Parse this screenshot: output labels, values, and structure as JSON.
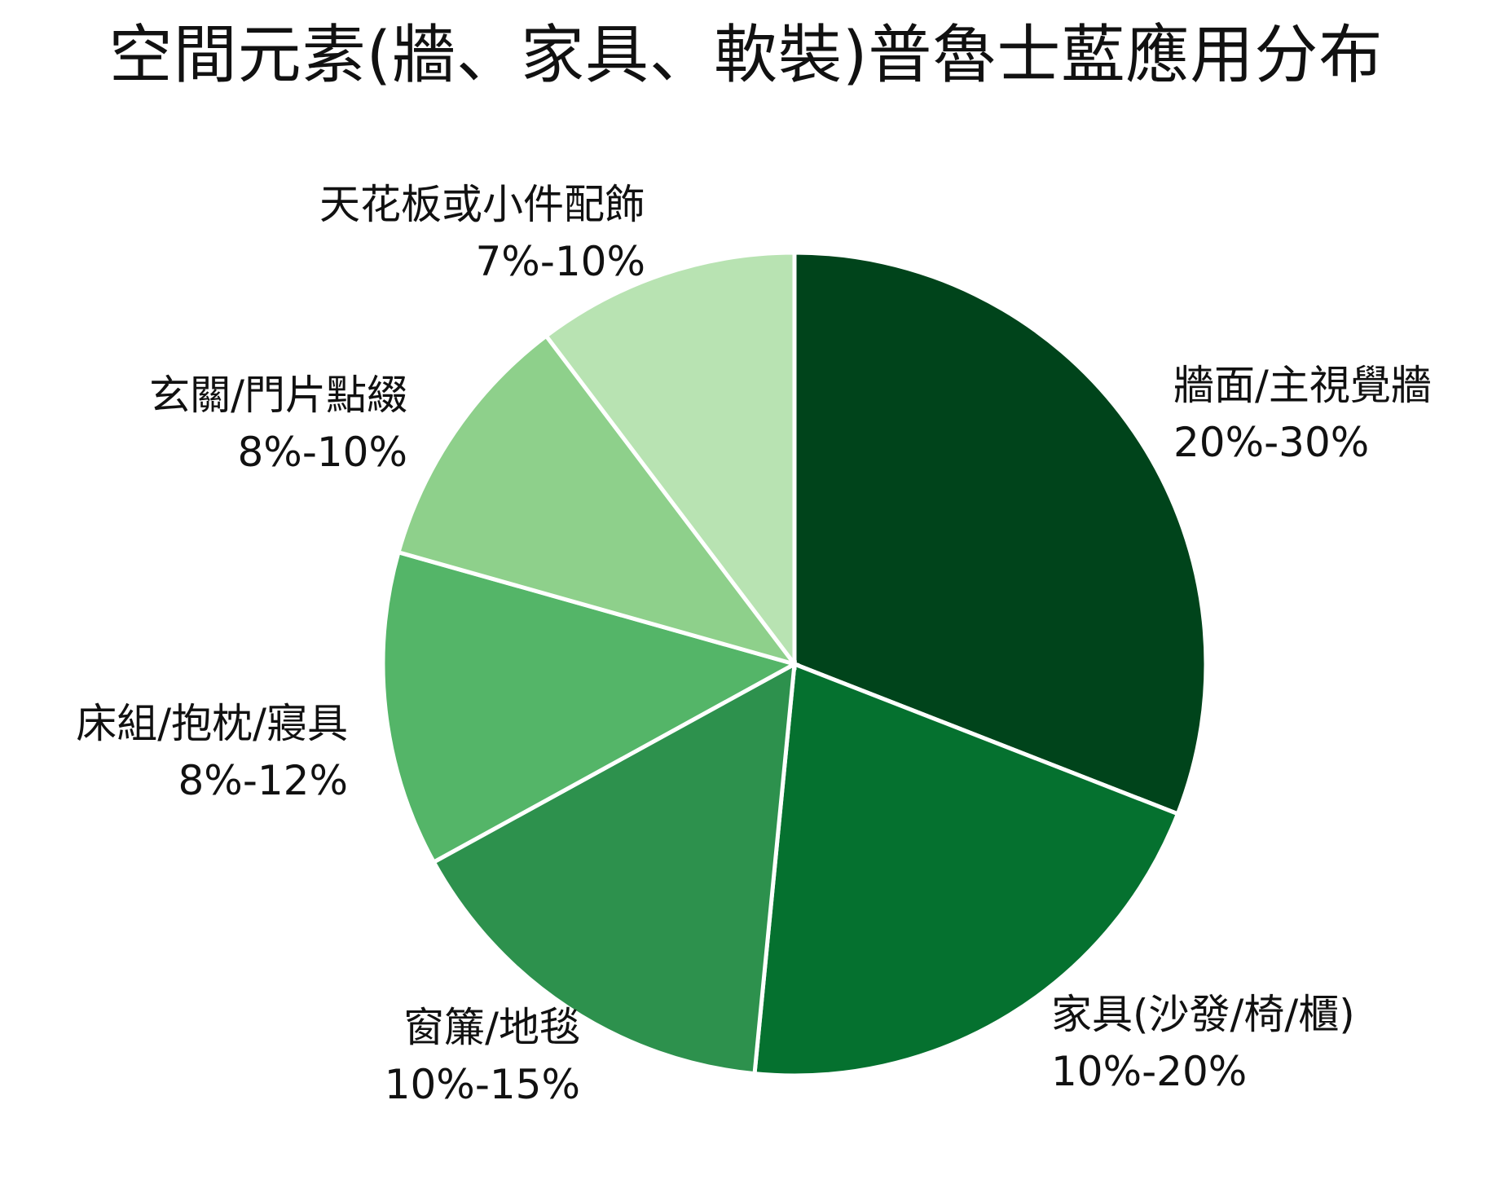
{
  "chart_data": {
    "type": "pie",
    "title": "空間元素(牆、家具、軟裝)普魯士藍應用分布",
    "slices": [
      {
        "label": "牆面/主視覺牆",
        "range": "20%-30%",
        "value": 30,
        "color": "#00441b"
      },
      {
        "label": "家具(沙發/椅/櫃)",
        "range": "10%-20%",
        "value": 20,
        "color": "#05712f"
      },
      {
        "label": "窗簾/地毯",
        "range": "10%-15%",
        "value": 15,
        "color": "#2d914d"
      },
      {
        "label": "床組/抱枕/寢具",
        "range": "8%-12%",
        "value": 12,
        "color": "#54b568"
      },
      {
        "label": "玄關/門片點綴",
        "range": "8%-10%",
        "value": 10,
        "color": "#8ed08b"
      },
      {
        "label": "天花板或小件配飾",
        "range": "7%-10%",
        "value": 10,
        "color": "#b8e3b2"
      }
    ]
  }
}
